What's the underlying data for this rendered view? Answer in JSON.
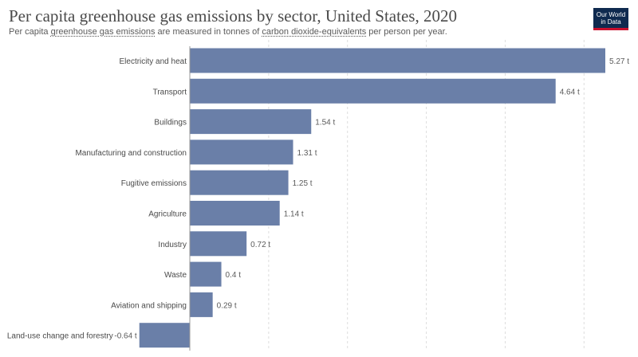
{
  "header": {
    "title": "Per capita greenhouse gas emissions by sector, United States, 2020",
    "subtitle_parts": [
      "Per capita ",
      "greenhouse gas emissions",
      " are measured in tonnes of ",
      "carbon dioxide-equivalents",
      " per person per year."
    ]
  },
  "logo": {
    "line1": "Our World",
    "line2": "in Data"
  },
  "colors": {
    "bar": "#6a7fa8",
    "grid": "#dddddd",
    "label": "#4a4a4a",
    "value": "#5b5b5b"
  },
  "chart_data": {
    "type": "bar",
    "orientation": "horizontal",
    "unit": "t",
    "grid": true,
    "categories": [
      "Electricity and heat",
      "Transport",
      "Buildings",
      "Manufacturing and construction",
      "Fugitive emissions",
      "Agriculture",
      "Industry",
      "Waste",
      "Aviation and shipping",
      "Land-use change and forestry"
    ],
    "values": [
      5.27,
      4.64,
      1.54,
      1.31,
      1.25,
      1.14,
      0.72,
      0.4,
      0.29,
      -0.64
    ],
    "value_labels": [
      "5.27 t",
      "4.64 t",
      "1.54 t",
      "1.31 t",
      "1.25 t",
      "1.14 t",
      "0.72 t",
      "0.4 t",
      "0.29 t",
      "-0.64 t"
    ],
    "xlim": [
      -0.64,
      5.27
    ]
  }
}
